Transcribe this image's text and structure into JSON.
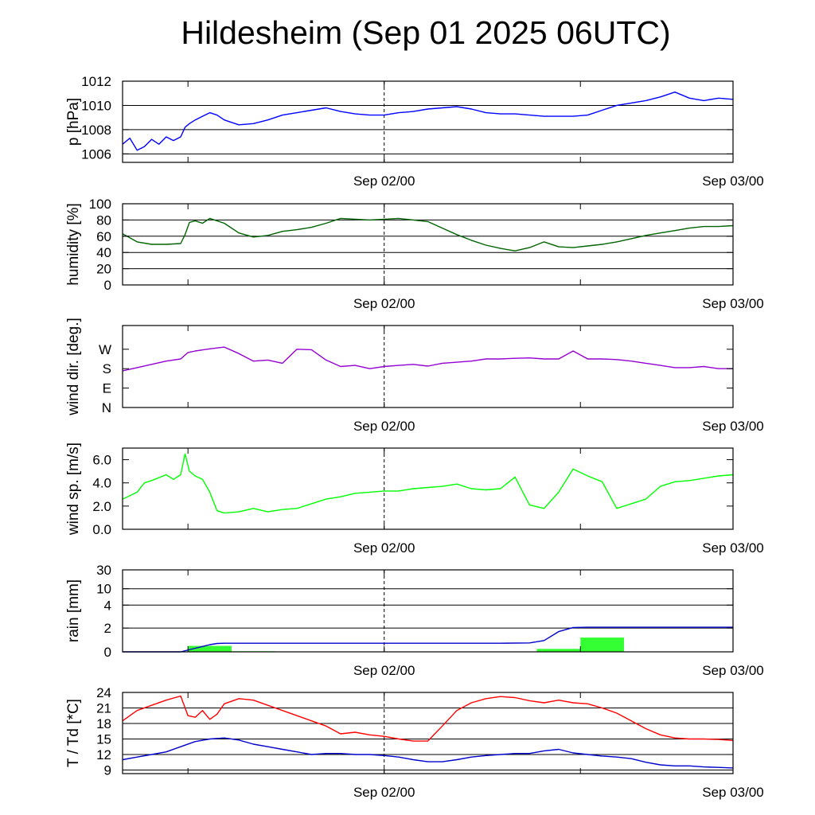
{
  "page": {
    "title": "Hildesheim (Sep 01 2025 06UTC)"
  },
  "chart_data": [
    {
      "type": "line",
      "ylabel": "p [hPa]",
      "ylim": [
        1005.3,
        1012
      ],
      "yticks": [
        1006,
        1008,
        1010,
        1012
      ],
      "ytick_labels": [
        "1006",
        "1008",
        "1010",
        "1012"
      ],
      "xlim": [
        0,
        42
      ],
      "x_unit": "hours after Sep 01 06UTC",
      "xtick_labels": [
        "Sep 02/00",
        "Sep 03/00"
      ],
      "grid": true,
      "series": [
        {
          "color": "#0000ff",
          "x": [
            0,
            0.5,
            1,
            1.5,
            2,
            2.5,
            3,
            3.5,
            4,
            4.3,
            4.6,
            5,
            5.5,
            6,
            6.5,
            7,
            7.5,
            8,
            9,
            10,
            11,
            12,
            13,
            14,
            15,
            16,
            17,
            18,
            19,
            20,
            21,
            22,
            23,
            24,
            25,
            26,
            27,
            28,
            29,
            30,
            31,
            32,
            33,
            34,
            35,
            36,
            37,
            38,
            39,
            40,
            41,
            42
          ],
          "values": [
            1006.8,
            1007.3,
            1006.3,
            1006.6,
            1007.2,
            1006.8,
            1007.4,
            1007.1,
            1007.4,
            1008.2,
            1008.5,
            1008.8,
            1009.1,
            1009.4,
            1009.2,
            1008.8,
            1008.6,
            1008.4,
            1008.5,
            1008.8,
            1009.2,
            1009.4,
            1009.6,
            1009.8,
            1009.5,
            1009.3,
            1009.2,
            1009.2,
            1009.4,
            1009.5,
            1009.7,
            1009.8,
            1009.9,
            1009.7,
            1009.4,
            1009.3,
            1009.3,
            1009.2,
            1009.1,
            1009.1,
            1009.1,
            1009.2,
            1009.6,
            1010.0,
            1010.2,
            1010.4,
            1010.7,
            1011.1,
            1010.6,
            1010.4,
            1010.6,
            1010.5
          ]
        }
      ]
    },
    {
      "type": "line",
      "ylabel": "humidity [%]",
      "ylim": [
        0,
        100
      ],
      "yticks": [
        0,
        20,
        40,
        60,
        80,
        100
      ],
      "ytick_labels": [
        "0",
        "20",
        "40",
        "60",
        "80",
        "100"
      ],
      "xlim": [
        0,
        42
      ],
      "xtick_labels": [
        "Sep 02/00",
        "Sep 03/00"
      ],
      "grid": true,
      "series": [
        {
          "color": "#006400",
          "x": [
            0,
            1,
            2,
            3,
            4,
            4.3,
            4.6,
            5,
            5.5,
            6,
            7,
            8,
            9,
            10,
            11,
            12,
            13,
            14,
            15,
            16,
            17,
            18,
            19,
            20,
            21,
            22,
            23,
            24,
            25,
            26,
            27,
            28,
            29,
            30,
            31,
            32,
            33,
            34,
            35,
            36,
            37,
            38,
            39,
            40,
            41,
            42
          ],
          "values": [
            63,
            53,
            50,
            50,
            51,
            62,
            77,
            79,
            76,
            82,
            76,
            64,
            59,
            61,
            66,
            68,
            71,
            76,
            82,
            81,
            80,
            81,
            82,
            80,
            78,
            70,
            62,
            55,
            49,
            45,
            42,
            46,
            53,
            47,
            46,
            48,
            50,
            53,
            57,
            61,
            64,
            67,
            70,
            72,
            72,
            73
          ]
        }
      ]
    },
    {
      "type": "line",
      "ylabel": "wind dir. [deg.]",
      "ylim": [
        0,
        380
      ],
      "yticks": [
        0,
        90,
        180,
        270
      ],
      "ytick_labels": [
        "N",
        "E",
        "S",
        "W"
      ],
      "xlim": [
        0,
        42
      ],
      "xtick_labels": [
        "Sep 02/00",
        "Sep 03/00"
      ],
      "grid": false,
      "series": [
        {
          "color": "#9400d3",
          "x": [
            0,
            1,
            2,
            3,
            4,
            4.5,
            5,
            6,
            7,
            8,
            9,
            10,
            11,
            12,
            13,
            14,
            15,
            16,
            17,
            18,
            19,
            20,
            21,
            22,
            23,
            24,
            25,
            26,
            27,
            28,
            29,
            30,
            31,
            32,
            33,
            34,
            35,
            36,
            37,
            38,
            39,
            40,
            41,
            42
          ],
          "values": [
            170,
            185,
            200,
            215,
            225,
            255,
            262,
            272,
            280,
            250,
            215,
            220,
            205,
            270,
            268,
            220,
            190,
            195,
            180,
            190,
            195,
            200,
            192,
            205,
            210,
            215,
            225,
            225,
            228,
            230,
            225,
            225,
            262,
            225,
            225,
            222,
            215,
            205,
            195,
            185,
            185,
            190,
            180,
            180
          ]
        }
      ]
    },
    {
      "type": "line",
      "ylabel": "wind sp. [m/s]",
      "ylim": [
        0,
        7
      ],
      "yticks": [
        0,
        2,
        4,
        6
      ],
      "ytick_labels": [
        "0.0",
        "2.0",
        "4.0",
        "6.0"
      ],
      "xlim": [
        0,
        42
      ],
      "xtick_labels": [
        "Sep 02/00",
        "Sep 03/00"
      ],
      "grid": false,
      "series": [
        {
          "color": "#00ff00",
          "x": [
            0,
            1,
            1.5,
            2,
            3,
            3.5,
            4,
            4.3,
            4.6,
            5,
            5.5,
            6,
            6.5,
            7,
            8,
            9,
            10,
            11,
            12,
            13,
            14,
            15,
            16,
            17,
            18,
            19,
            20,
            21,
            22,
            23,
            24,
            25,
            26,
            27,
            28,
            29,
            30,
            31,
            32,
            33,
            34,
            35,
            36,
            37,
            38,
            39,
            40,
            41,
            42
          ],
          "values": [
            2.6,
            3.2,
            4.0,
            4.2,
            4.7,
            4.3,
            4.7,
            6.5,
            5.0,
            4.6,
            4.3,
            3.2,
            1.6,
            1.4,
            1.5,
            1.8,
            1.5,
            1.7,
            1.8,
            2.2,
            2.6,
            2.8,
            3.1,
            3.2,
            3.3,
            3.3,
            3.5,
            3.6,
            3.7,
            3.9,
            3.5,
            3.4,
            3.5,
            4.5,
            2.1,
            1.8,
            3.2,
            5.2,
            4.6,
            4.1,
            1.8,
            2.2,
            2.6,
            3.7,
            4.1,
            4.2,
            4.4,
            4.6,
            4.7
          ]
        }
      ]
    },
    {
      "type": "bar",
      "ylabel": "rain [mm]",
      "y_scale": "nonlinear",
      "yticks": [
        0,
        2,
        4,
        10,
        30
      ],
      "ytick_labels": [
        "0",
        "2",
        "4",
        "10",
        "30"
      ],
      "xlim": [
        0,
        42
      ],
      "xtick_labels": [
        "Sep 02/00",
        "Sep 03/00"
      ],
      "grid": true,
      "bars": [
        {
          "color": "#33ff33",
          "x_start": 4.5,
          "x_end": 7.5,
          "value": 0.5
        },
        {
          "color": "#33ff33",
          "x_start": 7.5,
          "x_end": 10.5,
          "value": 0.05
        },
        {
          "color": "#33ff33",
          "x_start": 28.5,
          "x_end": 31.5,
          "value": 0.25
        },
        {
          "color": "#33ff33",
          "x_start": 31.5,
          "x_end": 34.5,
          "value": 1.2
        }
      ],
      "series": [
        {
          "color": "#0000cd",
          "name": "",
          "x": [
            0,
            4,
            5,
            6,
            6.5,
            7,
            10,
            14,
            18,
            22,
            26,
            28,
            29,
            30,
            31,
            32,
            34,
            36,
            38,
            40,
            42
          ],
          "values": [
            0,
            0,
            0.3,
            0.6,
            0.7,
            0.72,
            0.72,
            0.72,
            0.72,
            0.72,
            0.72,
            0.75,
            0.95,
            1.7,
            2.05,
            2.07,
            2.07,
            2.07,
            2.07,
            2.07,
            2.07
          ]
        }
      ]
    },
    {
      "type": "line",
      "ylabel": "T / Td [*C]",
      "ylim": [
        8.3,
        24
      ],
      "yticks": [
        9,
        12,
        15,
        18,
        21,
        24
      ],
      "ytick_labels": [
        "9",
        "12",
        "15",
        "18",
        "21",
        "24"
      ],
      "xlim": [
        0,
        42
      ],
      "xtick_labels": [
        "Sep 02/00",
        "Sep 03/00"
      ],
      "grid": true,
      "series": [
        {
          "color": "#ff0000",
          "x": [
            0,
            1,
            2,
            3,
            4,
            4.5,
            5,
            5.5,
            6,
            6.5,
            7,
            8,
            9,
            10,
            11,
            12,
            13,
            14,
            15,
            16,
            17,
            18,
            19,
            20,
            21,
            22,
            23,
            24,
            25,
            26,
            27,
            28,
            29,
            30,
            31,
            32,
            33,
            34,
            35,
            36,
            37,
            38,
            39,
            40,
            41,
            42
          ],
          "values": [
            18.5,
            20.5,
            21.5,
            22.5,
            23.3,
            19.5,
            19.2,
            20.5,
            18.8,
            19.8,
            21.8,
            22.8,
            22.5,
            21.5,
            20.5,
            19.5,
            18.5,
            17.5,
            16.0,
            16.3,
            15.8,
            15.5,
            15.0,
            14.6,
            14.6,
            17.5,
            20.5,
            22.0,
            22.8,
            23.2,
            23.0,
            22.4,
            22.0,
            22.5,
            22.0,
            21.8,
            21.0,
            20.0,
            18.5,
            17.0,
            15.8,
            15.2,
            15.0,
            15.0,
            14.9,
            14.7
          ]
        },
        {
          "color": "#0000cd",
          "x": [
            0,
            1,
            2,
            3,
            4,
            5,
            6,
            7,
            8,
            9,
            10,
            11,
            12,
            13,
            14,
            15,
            16,
            17,
            18,
            19,
            20,
            21,
            22,
            23,
            24,
            25,
            26,
            27,
            28,
            29,
            30,
            31,
            32,
            33,
            34,
            35,
            36,
            37,
            38,
            39,
            40,
            41,
            42
          ],
          "values": [
            11.0,
            11.5,
            12.0,
            12.5,
            13.5,
            14.5,
            15.0,
            15.2,
            14.8,
            14.0,
            13.5,
            13.0,
            12.5,
            12.0,
            12.2,
            12.2,
            12.0,
            12.0,
            11.8,
            11.5,
            11.0,
            10.6,
            10.6,
            11.0,
            11.5,
            11.8,
            12.0,
            12.2,
            12.2,
            12.7,
            13.0,
            12.3,
            12.0,
            11.7,
            11.5,
            11.2,
            10.5,
            10.0,
            9.8,
            9.8,
            9.6,
            9.5,
            9.4
          ]
        }
      ]
    }
  ]
}
